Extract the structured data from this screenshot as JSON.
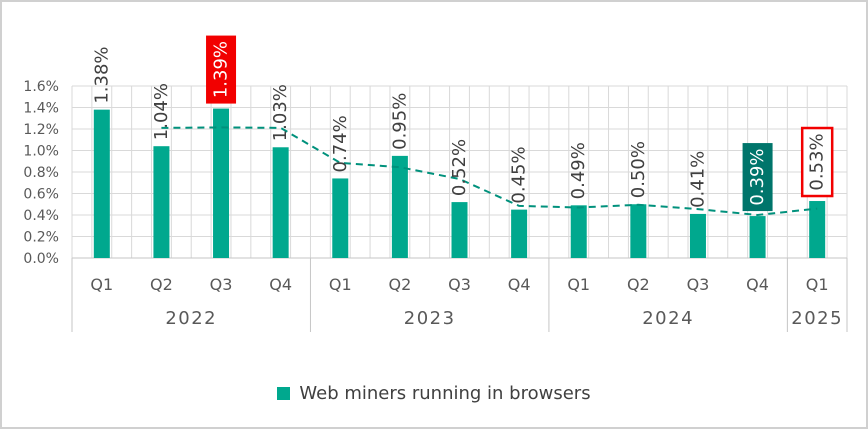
{
  "frame": {
    "border_color": "#d0d0d0",
    "background": "#ffffff"
  },
  "chart_data": {
    "type": "bar",
    "title": "",
    "legend": {
      "label": "Web miners running in browsers",
      "position": "bottom"
    },
    "y_axis": {
      "min": 0,
      "max": 1.6,
      "step": 0.2,
      "tick_labels": [
        "0.0%",
        "0.2%",
        "0.4%",
        "0.6%",
        "0.8%",
        "1.0%",
        "1.2%",
        "1.4%",
        "1.6%"
      ]
    },
    "x_axis": {
      "quarter_labels": [
        "Q1",
        "Q2",
        "Q3",
        "Q4",
        "Q1",
        "Q2",
        "Q3",
        "Q4",
        "Q1",
        "Q2",
        "Q3",
        "Q4",
        "Q1"
      ],
      "year_groups": [
        {
          "label": "2022",
          "span": 4
        },
        {
          "label": "2023",
          "span": 4
        },
        {
          "label": "2024",
          "span": 4
        },
        {
          "label": "2025",
          "span": 1
        }
      ]
    },
    "series": [
      {
        "name": "Web miners running in browsers",
        "color": "#00a88e",
        "values": [
          1.38,
          1.04,
          1.39,
          1.03,
          0.74,
          0.95,
          0.52,
          0.45,
          0.49,
          0.5,
          0.41,
          0.39,
          0.53
        ],
        "labels": [
          "1.38%",
          "1.04%",
          "1.39%",
          "1.03%",
          "0.74%",
          "0.95%",
          "0.52%",
          "0.45%",
          "0.49%",
          "0.50%",
          "0.41%",
          "0.39%",
          "0.53%"
        ]
      }
    ],
    "trendline": {
      "type": "moving_average",
      "period": 2,
      "style": "dashed",
      "color": "#00917c",
      "values": [
        null,
        1.21,
        1.215,
        1.21,
        0.885,
        0.845,
        0.735,
        0.485,
        0.47,
        0.495,
        0.455,
        0.4,
        0.46
      ]
    },
    "highlights": [
      {
        "index": 2,
        "style": "filled",
        "fill": "#f20000",
        "text_color": "#ffffff"
      },
      {
        "index": 11,
        "style": "filled",
        "fill": "#00756b",
        "text_color": "#ffffff"
      },
      {
        "index": 12,
        "style": "outlined",
        "border": "#f20000",
        "text_color": "#404040"
      }
    ],
    "colors": {
      "grid": "#d9d9d9",
      "axis_line": "#c6c6c6",
      "tick_text": "#595959",
      "label_text": "#404040",
      "legend_text": "#404040"
    }
  }
}
